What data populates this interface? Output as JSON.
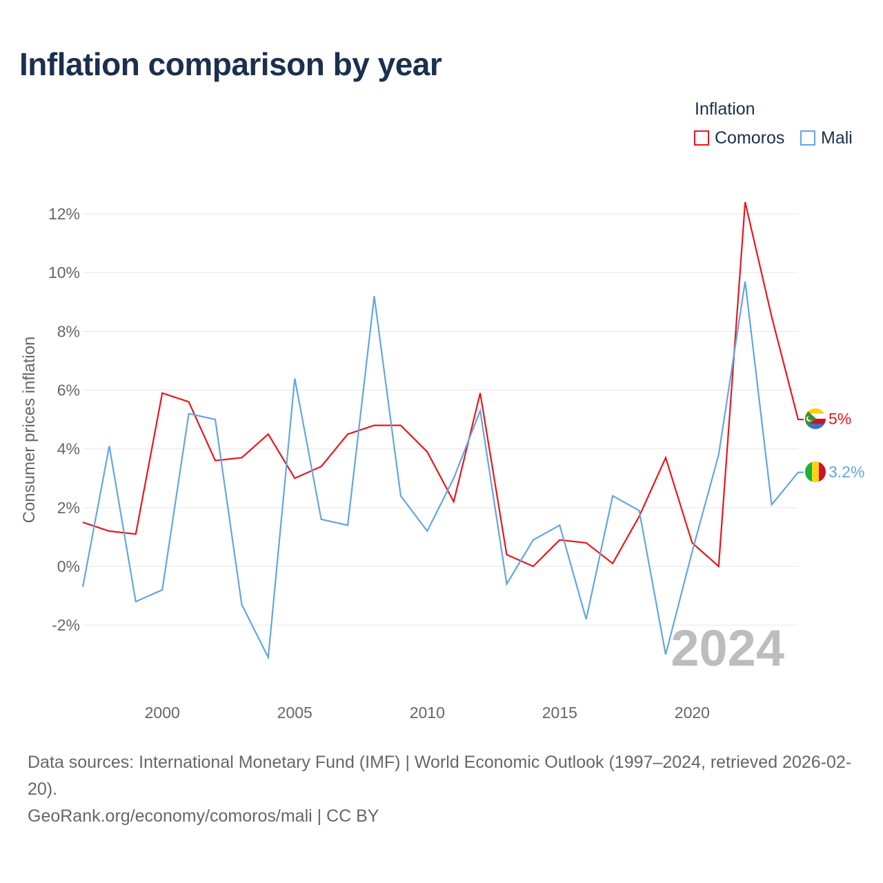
{
  "title": "Inflation comparison by year",
  "legend": {
    "title": "Inflation",
    "items": [
      {
        "label": "Comoros",
        "color": "#e8161b"
      },
      {
        "label": "Mali",
        "color": "#63a5e3"
      }
    ]
  },
  "footer": {
    "line1": "Data sources: International Monetary Fund (IMF) | World Economic Outlook (1997–2024, retrieved 2026-02-20).",
    "line2": "GeoRank.org/economy/comoros/mali | CC BY"
  },
  "chart_data": {
    "type": "line",
    "title": "Inflation comparison by year",
    "xlabel": "",
    "ylabel": "Consumer prices inflation",
    "x": [
      1997,
      1998,
      1999,
      2000,
      2001,
      2002,
      2003,
      2004,
      2005,
      2006,
      2007,
      2008,
      2009,
      2010,
      2011,
      2012,
      2013,
      2014,
      2015,
      2016,
      2017,
      2018,
      2019,
      2020,
      2021,
      2022,
      2023,
      2024
    ],
    "xlim": [
      1997,
      2024
    ],
    "ylim": [
      -4,
      13
    ],
    "xticks": [
      2000,
      2005,
      2010,
      2015,
      2020
    ],
    "yticks": [
      -2,
      0,
      2,
      4,
      6,
      8,
      10,
      12
    ],
    "ytick_suffix": "%",
    "grid": true,
    "watermark": "2024",
    "series": [
      {
        "name": "Comoros",
        "color": "#e8161b",
        "values": [
          1.5,
          1.2,
          1.1,
          5.9,
          5.6,
          3.6,
          3.7,
          4.5,
          3.0,
          3.4,
          4.5,
          4.8,
          4.8,
          3.9,
          2.2,
          5.9,
          0.4,
          0.0,
          0.9,
          0.8,
          0.1,
          1.7,
          3.7,
          0.8,
          0.0,
          12.4,
          8.5,
          5.0
        ],
        "end_label": "5%",
        "flag_icon": "comoros-flag-icon"
      },
      {
        "name": "Mali",
        "color": "#63a5e3",
        "values": [
          -0.7,
          4.1,
          -1.2,
          -0.8,
          5.2,
          5.0,
          -1.3,
          -3.1,
          6.4,
          1.6,
          1.4,
          9.2,
          2.4,
          1.2,
          3.0,
          5.3,
          -0.6,
          0.9,
          1.4,
          -1.8,
          2.4,
          1.9,
          -3.0,
          0.5,
          3.8,
          9.7,
          2.1,
          3.2
        ],
        "end_label": "3.2%",
        "flag_icon": "mali-flag-icon"
      }
    ]
  }
}
